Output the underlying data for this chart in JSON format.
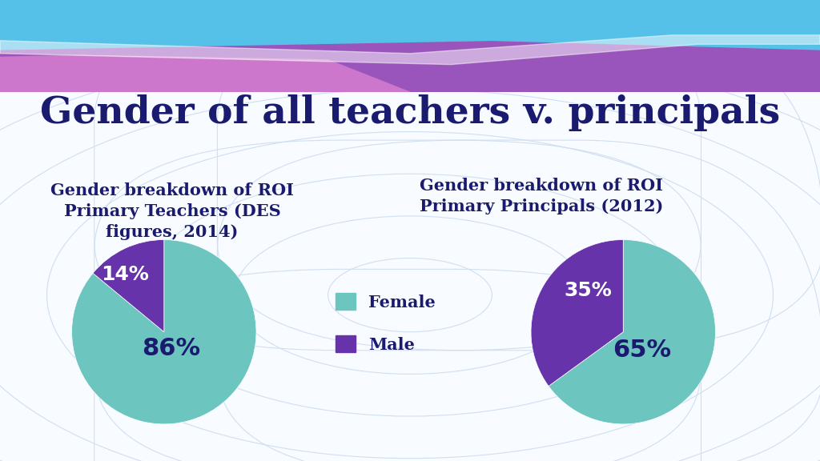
{
  "title": "Gender of all teachers v. principals",
  "title_color": "#1a1a6e",
  "title_fontsize": 34,
  "background_color": "#ffffff",
  "chart1_title": "Gender breakdown of ROI\nPrimary Teachers (DES\nfigures, 2014)",
  "chart2_title": "Gender breakdown of ROI\nPrimary Principals (2012)",
  "chart_title_color": "#1a1a6e",
  "chart_title_fontsize": 15,
  "teachers_values": [
    86,
    14
  ],
  "principals_values": [
    65,
    35
  ],
  "female_color": "#6cc5be",
  "male_color": "#6633aa",
  "legend_labels": [
    "Female",
    "Male"
  ],
  "label_fontsize": 20,
  "label_color_dark": "#1a1a6e",
  "label_color_light": "#ffffff",
  "label_fontweight": "bold",
  "header_colors": {
    "sky_blue": "#4ab8e8",
    "mid_blue": "#5580cc",
    "purple": "#8844aa",
    "pink": "#cc66aa",
    "light_purple": "#cc88cc"
  },
  "grid_color": "#d0dff0",
  "body_bg": "#f8fbff"
}
